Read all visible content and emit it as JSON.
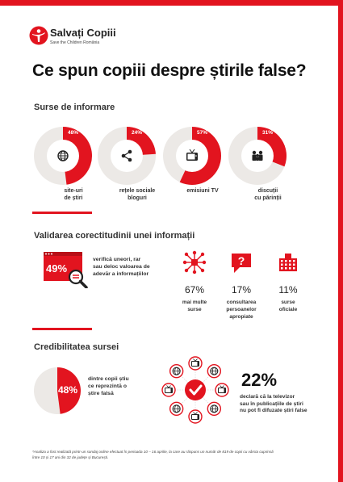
{
  "logo": {
    "brand": "Salvați Copiii",
    "tagline": "Save the Children România"
  },
  "title": "Ce spun copiii despre știrile false?",
  "chart_data": [
    {
      "type": "pie",
      "title": "Surse de informare",
      "categories": [
        "site-uri de știri",
        "rețele sociale bloguri",
        "emisiuni TV",
        "discuții cu părinții"
      ],
      "values": [
        48,
        24,
        57,
        31
      ],
      "value_labels": [
        "48%",
        "24%",
        "57%",
        "31%"
      ],
      "label_lines": [
        [
          "site-uri",
          "de știri"
        ],
        [
          "rețele sociale",
          "bloguri"
        ],
        [
          "emisiuni TV"
        ],
        [
          "discuții",
          "cu părinții"
        ]
      ],
      "icons": [
        "globe-icon",
        "share-icon",
        "tv-icon",
        "family-icon"
      ]
    },
    {
      "type": "bar",
      "title": "Validarea corectitudinii unei informații",
      "highlight": {
        "value": 49,
        "label": "49%",
        "text_lines": [
          "verifică uneori, rar",
          "sau deloc valoarea de",
          "adevăr a informațiilor"
        ]
      },
      "categories": [
        "mai multe surse",
        "consultarea persoanelor apropiate",
        "surse oficiale"
      ],
      "values": [
        67,
        17,
        11
      ],
      "value_labels": [
        "67%",
        "17%",
        "11%"
      ],
      "label_lines": [
        [
          "mai multe",
          "surse"
        ],
        [
          "consultarea",
          "persoanelor",
          "apropiate"
        ],
        [
          "surse",
          "oficiale"
        ]
      ],
      "icons": [
        "network-icon",
        "question-bubble-icon",
        "institution-icon"
      ]
    },
    {
      "type": "pie",
      "title": "Credibilitatea sursei",
      "categories": [
        "dintre copii știu ce reprezintă o știre falsă"
      ],
      "values": [
        48
      ],
      "value_labels": [
        "48%"
      ],
      "label_lines": [
        [
          "dintre copii știu",
          "ce reprezintă o",
          "știre falsă"
        ]
      ]
    }
  ],
  "tv_stat": {
    "value": "22%",
    "lines": [
      "declară că la televizor",
      "sau în publicațiile de știri",
      "nu pot fi difuzate știri false"
    ]
  },
  "footnote_lines": [
    "*Analiza a fost realizată printr-un sondaj online efectuat în perioada 10 – 16 aprilie, la care au răspuns un număr de 819 de copii cu vârsta cuprinsă",
    "între 10 și 17 ani din 32 de județe și București."
  ],
  "colors": {
    "accent": "#e2141f",
    "ring": "#ece9e6",
    "icon_dark": "#222222"
  }
}
